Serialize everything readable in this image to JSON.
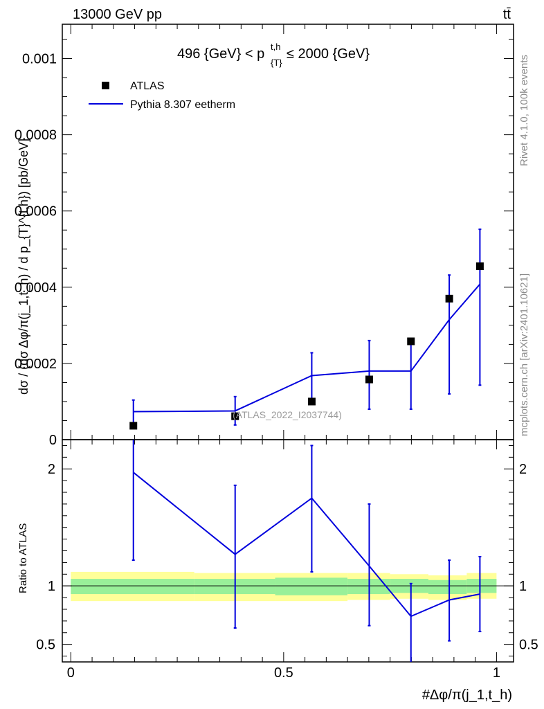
{
  "header": {
    "left": "13000 GeV pp",
    "right": "tt̄"
  },
  "side_text": {
    "rivet": "Rivet 4.1.0,  100k events",
    "mcplots": "mcplots.cern.ch [arXiv:2401.10621]"
  },
  "watermark": "(ATLAS_2022_I2037744)",
  "colors": {
    "data": "#000000",
    "mc": "#0000dd",
    "band_inner": "#99f099",
    "band_outer": "#ffff99"
  },
  "chart_data": [
    {
      "type": "scatter",
      "panel": "main",
      "title": "496 {GeV} < p_{T}^{t,h} ≤ 2000 {GeV}",
      "ylabel": "dσ / (dσ Δφ/π(j_1,t_h) / d p_{T}^{t,h}) [pb/GeV]",
      "xlim": [
        -0.02,
        1.04
      ],
      "ylim": [
        0,
        0.00109
      ],
      "y_ticks": [
        {
          "value": 0,
          "label": "0"
        },
        {
          "value": 0.0002,
          "label": "0.0002"
        },
        {
          "value": 0.0004,
          "label": "0.0004"
        },
        {
          "value": 0.0006,
          "label": "0.0006"
        },
        {
          "value": 0.0008,
          "label": "0.0008"
        },
        {
          "value": 0.001,
          "label": "0.001"
        }
      ],
      "legend_position": "top-left",
      "series": [
        {
          "name": "ATLAS",
          "kind": "points",
          "x": [
            0.147,
            0.386,
            0.566,
            0.701,
            0.799,
            0.889,
            0.961
          ],
          "y": [
            3.65e-05,
            6.15e-05,
            0.0001,
            0.000158,
            0.000258,
            0.00037,
            0.000455
          ]
        },
        {
          "name": "Pythia 8.307 eetherm",
          "kind": "line",
          "bin_edges": [
            0.147,
            0.386,
            0.566,
            0.701,
            0.799,
            0.889,
            0.961
          ],
          "y": [
            7.35e-05,
            7.55e-05,
            0.000168,
            0.00018,
            0.00018,
            0.000315,
            0.000408
          ],
          "err_low": [
            3.65e-05,
            3.85e-05,
            0.0001,
            8e-05,
            8e-05,
            0.00012,
            0.000143
          ],
          "err_high": [
            0.000104,
            0.000113,
            0.000228,
            0.00026,
            0.00026,
            0.000432,
            0.000552
          ]
        }
      ]
    },
    {
      "type": "line",
      "panel": "ratio",
      "ylabel": "Ratio to ATLAS",
      "xlabel": "#Δφ/π(j_1,t_h)",
      "xlim": [
        -0.02,
        1.04
      ],
      "ylim": [
        0.35,
        2.25
      ],
      "x_ticks": [
        {
          "value": 0,
          "label": "0"
        },
        {
          "value": 0.5,
          "label": "0.5"
        },
        {
          "value": 1,
          "label": "1"
        }
      ],
      "y_ticks": [
        {
          "value": 0.5,
          "label": "0.5"
        },
        {
          "value": 1,
          "label": "1"
        },
        {
          "value": 2,
          "label": "2"
        }
      ],
      "series": [
        {
          "name": "Pythia 8.307 eetherm",
          "x": [
            0.147,
            0.386,
            0.566,
            0.701,
            0.799,
            0.889,
            0.961
          ],
          "y": [
            1.97,
            1.27,
            1.75,
            1.17,
            0.74,
            0.88,
            0.93
          ],
          "err_low": [
            1.22,
            0.64,
            1.12,
            0.66,
            0.32,
            0.53,
            0.61
          ],
          "err_high": [
            2.25,
            1.86,
            2.2,
            1.7,
            1.02,
            1.22,
            1.25
          ]
        }
      ],
      "bands": {
        "edges": [
          0,
          0.29,
          0.48,
          0.65,
          0.75,
          0.84,
          0.93,
          1
        ],
        "inner_low": [
          0.93,
          0.93,
          0.92,
          0.93,
          0.94,
          0.93,
          0.94
        ],
        "inner_high": [
          1.06,
          1.06,
          1.07,
          1.06,
          1.06,
          1.05,
          1.06
        ],
        "outer_low": [
          0.87,
          0.87,
          0.87,
          0.88,
          0.89,
          0.88,
          0.89
        ],
        "outer_high": [
          1.12,
          1.11,
          1.11,
          1.11,
          1.1,
          1.09,
          1.11
        ]
      }
    }
  ]
}
